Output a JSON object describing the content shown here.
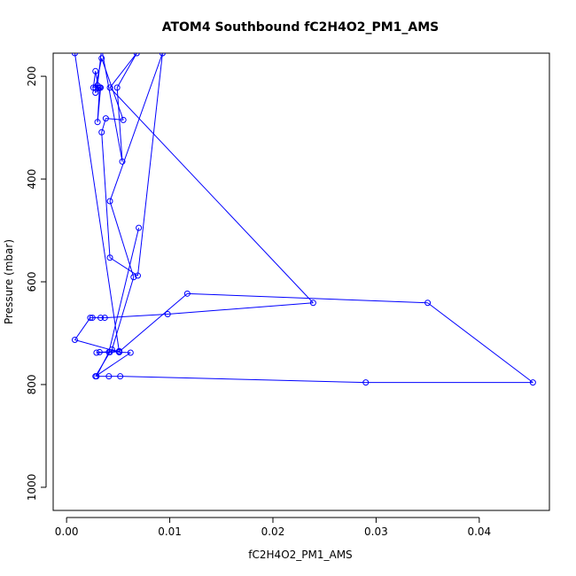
{
  "chart_data": {
    "type": "line",
    "title": "ATOM4 Southbound fC2H4O2_PM1_AMS",
    "xlabel": "fC2H4O2_PM1_AMS",
    "ylabel": "Pressure (mbar)",
    "xlim": [
      -0.0013,
      0.0468
    ],
    "ylim": [
      1045,
      155
    ],
    "y_reversed": true,
    "x_ticks": [
      0.0,
      0.01,
      0.02,
      0.03,
      0.04
    ],
    "x_tick_labels": [
      "0.00",
      "0.01",
      "0.02",
      "0.03",
      "0.04"
    ],
    "y_ticks": [
      200,
      400,
      600,
      800,
      1000
    ],
    "y_tick_labels": [
      "200",
      "400",
      "600",
      "800",
      "1000"
    ],
    "grid": false,
    "legend": "none",
    "series_color": "#0000ff",
    "x": [
      0.0008,
      0.0051,
      0.0042,
      0.0028,
      0.0062,
      0.0051,
      0.0051,
      0.0032,
      0.0029,
      0.0051,
      0.0051,
      0.0051,
      0.0051,
      0.0008,
      0.0023,
      0.0025,
      0.0033,
      0.0037,
      0.0098,
      0.0239,
      0.0042,
      0.0068,
      0.0049,
      0.0054,
      0.0034,
      0.003,
      0.0026,
      0.0028,
      0.0031,
      0.0033,
      0.003,
      0.0032,
      0.0028,
      0.0028,
      0.0034,
      0.0055,
      0.0038,
      0.0034,
      0.0042,
      0.0069,
      0.0093,
      0.0042,
      0.0065,
      0.0044,
      0.0051,
      0.0117,
      0.035,
      0.0452,
      0.029,
      0.0052,
      0.0041,
      0.0029,
      0.0041,
      0.007
    ],
    "y": [
      155,
      736,
      737,
      784,
      738,
      737,
      736,
      737,
      738,
      736,
      737,
      735,
      737,
      713,
      670,
      670,
      670,
      670,
      663,
      641,
      222,
      155,
      222,
      366,
      146,
      218,
      222,
      190,
      223,
      222,
      289,
      222,
      232,
      222,
      165,
      285,
      282,
      309,
      553,
      588,
      155,
      443,
      591,
      732,
      736,
      623,
      641,
      796,
      796,
      784,
      784,
      784,
      737,
      495
    ]
  }
}
